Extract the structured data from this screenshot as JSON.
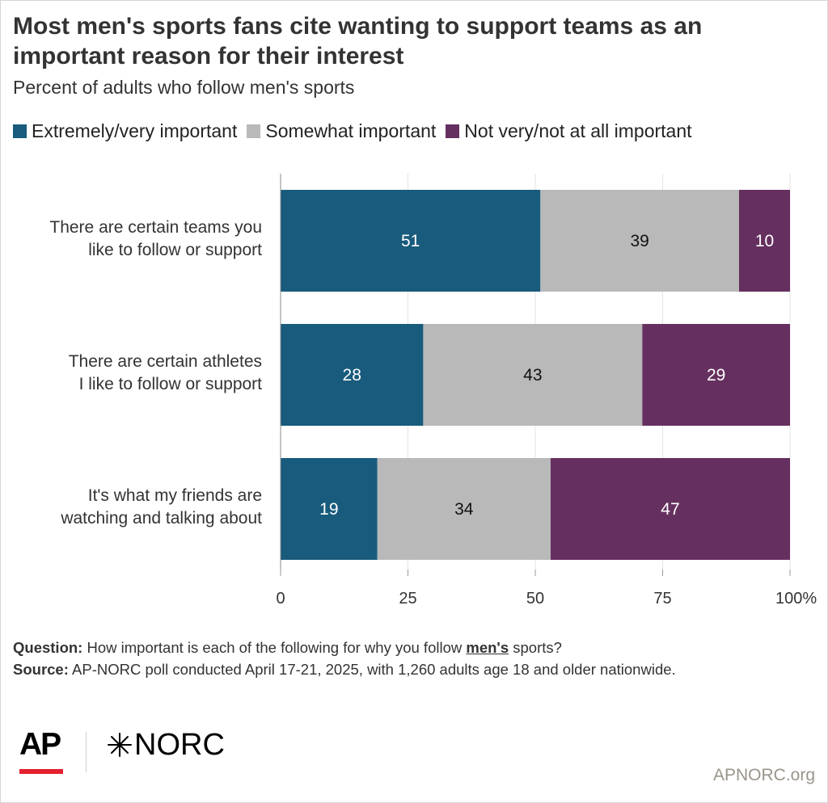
{
  "title": "Most men's sports fans cite wanting to support teams as an important reason for their interest",
  "subtitle": "Percent of adults who follow men's sports",
  "colors": {
    "extremely": "#185b7c",
    "somewhat": "#b9b9b9",
    "not": "#65305f"
  },
  "chart_data": {
    "type": "bar",
    "orientation": "horizontal",
    "stacked": true,
    "categories": [
      "There are certain teams you like to follow or support",
      "There are certain athletes I like to follow or support",
      "It's what my friends are watching and talking about"
    ],
    "series": [
      {
        "name": "Extremely/very important",
        "values": [
          51,
          28,
          19
        ]
      },
      {
        "name": "Somewhat important",
        "values": [
          39,
          43,
          34
        ]
      },
      {
        "name": "Not very/not at all important",
        "values": [
          10,
          29,
          47
        ]
      }
    ],
    "xlim": [
      0,
      100
    ],
    "xticks": [
      "0",
      "25",
      "50",
      "75",
      "100%"
    ],
    "grid": true,
    "legend": "top"
  },
  "category_lines": [
    [
      "There are certain teams you",
      "like to follow or support"
    ],
    [
      "There are certain athletes",
      "I like to follow or support"
    ],
    [
      "It's what my friends are",
      "watching and talking about"
    ]
  ],
  "notes": {
    "question_label": "Question:",
    "question_pre": "How important is each of the following for why you follow",
    "question_emph": "men's",
    "question_post": "sports?",
    "source_label": "Source:",
    "source_text": "AP-NORC poll conducted April 17-21, 2025, with 1,260 adults age 18 and older nationwide."
  },
  "logos": {
    "ap": "AP",
    "norc": "NORC",
    "norc_icon": "asterisk-star-icon"
  },
  "site": "APNORC.org"
}
